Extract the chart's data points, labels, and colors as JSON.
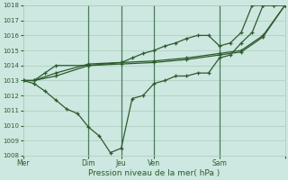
{
  "title": "",
  "xlabel": "Pression niveau de la mer( hPa )",
  "ylabel": "",
  "bg_color": "#cce8e0",
  "grid_color": "#aaccbb",
  "line_color": "#2d5a2d",
  "marker_color": "#2d5a2d",
  "ylim": [
    1008,
    1018
  ],
  "yticks": [
    1008,
    1009,
    1010,
    1011,
    1012,
    1013,
    1014,
    1015,
    1016,
    1017,
    1018
  ],
  "xtick_positions": [
    0,
    48,
    72,
    96,
    144,
    192
  ],
  "xtick_labels": [
    "Mer",
    "Dim",
    "Jeu",
    "Ven",
    "Sam",
    ""
  ],
  "vlines": [
    48,
    72,
    96,
    144
  ],
  "series1_x": [
    0,
    8,
    16,
    24,
    48,
    72,
    80,
    88,
    96,
    104,
    112,
    120,
    128,
    136,
    144,
    152,
    160,
    168,
    176,
    184,
    192
  ],
  "series1_y": [
    1013.0,
    1013.0,
    1013.5,
    1014.0,
    1014.0,
    1014.2,
    1014.5,
    1014.8,
    1015.0,
    1015.3,
    1015.5,
    1015.8,
    1016.0,
    1016.0,
    1015.3,
    1015.5,
    1016.2,
    1018.0,
    1018.0,
    1018.0,
    1018.0
  ],
  "series2_x": [
    0,
    8,
    16,
    24,
    32,
    40,
    48,
    56,
    64,
    72,
    80,
    88,
    96,
    104,
    112,
    120,
    128,
    136,
    144,
    152,
    160,
    168,
    176,
    184,
    192
  ],
  "series2_y": [
    1013.0,
    1012.8,
    1012.3,
    1011.7,
    1011.1,
    1010.8,
    1009.9,
    1009.3,
    1008.2,
    1008.5,
    1011.8,
    1012.0,
    1012.8,
    1013.0,
    1013.3,
    1013.3,
    1013.5,
    1013.5,
    1014.5,
    1014.7,
    1015.5,
    1016.2,
    1018.0,
    1018.0,
    1018.0
  ],
  "series3_x": [
    0,
    8,
    24,
    48,
    72,
    96,
    120,
    144,
    160,
    176,
    192
  ],
  "series3_y": [
    1013.0,
    1013.0,
    1013.5,
    1014.1,
    1014.2,
    1014.3,
    1014.5,
    1014.8,
    1015.0,
    1016.0,
    1018.0
  ],
  "series4_x": [
    0,
    8,
    24,
    48,
    72,
    96,
    120,
    144,
    160,
    176,
    192
  ],
  "series4_y": [
    1013.0,
    1013.0,
    1013.3,
    1014.0,
    1014.1,
    1014.2,
    1014.4,
    1014.7,
    1014.9,
    1015.9,
    1018.0
  ]
}
